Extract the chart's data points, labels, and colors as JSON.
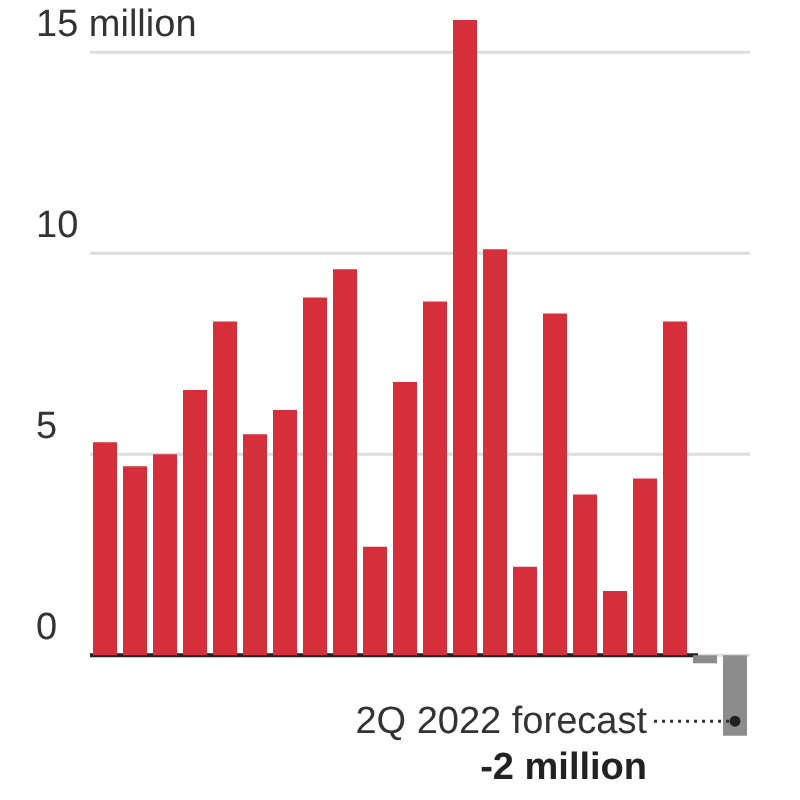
{
  "chart_data": {
    "type": "bar",
    "categories": [
      null,
      null,
      null,
      null,
      null,
      null,
      null,
      null,
      null,
      null,
      null,
      null,
      null,
      null,
      null,
      null,
      null,
      null,
      null,
      null,
      null,
      null
    ],
    "values": [
      5.3,
      4.7,
      5.0,
      6.6,
      8.3,
      5.5,
      6.1,
      8.9,
      9.6,
      2.7,
      6.8,
      8.8,
      15.8,
      10.1,
      2.2,
      8.5,
      4.0,
      1.6,
      4.4,
      8.3,
      -0.2,
      -2.0
    ],
    "colors": [
      "#d42f3a",
      "#d42f3a",
      "#d42f3a",
      "#d42f3a",
      "#d42f3a",
      "#d42f3a",
      "#d42f3a",
      "#d42f3a",
      "#d42f3a",
      "#d42f3a",
      "#d42f3a",
      "#d42f3a",
      "#d42f3a",
      "#d42f3a",
      "#d42f3a",
      "#d42f3a",
      "#d42f3a",
      "#d42f3a",
      "#d42f3a",
      "#d42f3a",
      "#8c8c8c",
      "#8c8c8c"
    ],
    "ylim": [
      -3.6,
      16.3
    ],
    "yticks": [
      0,
      5,
      10,
      {
        "value": 15,
        "label": "15 million"
      }
    ],
    "grid": "y",
    "ref_lines": [
      {
        "axis": "y",
        "value": 0,
        "color": "#222222"
      }
    ],
    "annotations": [
      "2Q 2022 forecast",
      "-2 million"
    ]
  }
}
